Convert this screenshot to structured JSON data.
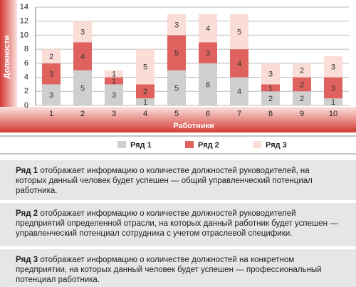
{
  "chart_data": {
    "type": "bar",
    "stacked": true,
    "y_label": "Должности",
    "x_label": "Работники",
    "categories": [
      "1",
      "2",
      "3",
      "4",
      "5",
      "6",
      "7",
      "8",
      "9",
      "10"
    ],
    "series": [
      {
        "name": "Ряд 1",
        "color": "#cfcfcf",
        "values": [
          3,
          5,
          3,
          1,
          5,
          6,
          4,
          2,
          2,
          1
        ]
      },
      {
        "name": "Ряд 2",
        "color": "#e0625f",
        "values": [
          3,
          4,
          1,
          2,
          5,
          3,
          4,
          1,
          2,
          3
        ]
      },
      {
        "name": "Ряд 3",
        "color": "#f9ddd6",
        "values": [
          2,
          3,
          1,
          5,
          3,
          4,
          5,
          3,
          2,
          3
        ]
      }
    ],
    "ylim": [
      0,
      14
    ],
    "yticks": [
      0,
      2,
      4,
      6,
      8,
      10,
      12,
      14
    ],
    "grid": true
  },
  "notes": [
    "отображает информацию о количестве должностей руководителей, на которых данный человек будет успешен — общий управленческий потенциал работника.",
    "отображает информацию о количестве должностей руководителей предприятий определенной отрасли, на которых данный работник будет успешен — управленческий потенциал сотрудника с учетом отраслевой специфики.",
    "отображает информацию о количестве должностей на конкретном предприятии, на которых данный человек будет успешен — профессиональный потенциал работника."
  ]
}
